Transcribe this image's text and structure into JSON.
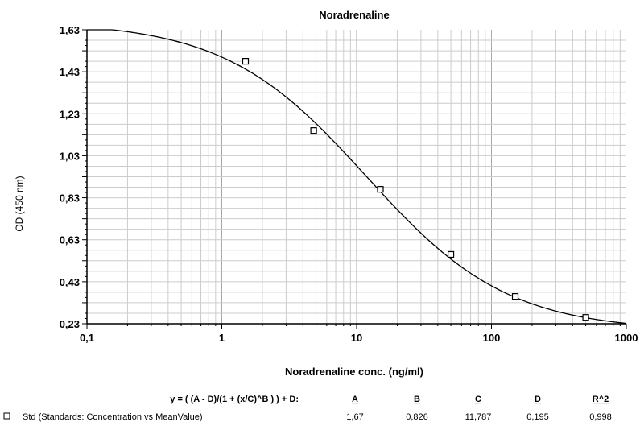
{
  "chart_data": {
    "type": "scatter",
    "title": "Noradrenaline",
    "xlabel": "Noradrenaline conc. (ng/ml)",
    "ylabel": "OD (450 nm)",
    "x_scale": "log",
    "xlim": [
      0.1,
      1000
    ],
    "ylim": [
      0.23,
      1.63
    ],
    "x_ticks": [
      "0,1",
      "1",
      "10",
      "100",
      "1000"
    ],
    "y_ticks": [
      "1,63",
      "1,43",
      "1,23",
      "1,03",
      "0,83",
      "0,63",
      "0,43",
      "0,23"
    ],
    "grid": true,
    "series": [
      {
        "name": "Std (Standards: Concentration vs MeanValue)",
        "marker": "square",
        "x": [
          1.5,
          4.8,
          15,
          50,
          150,
          500
        ],
        "y": [
          1.48,
          1.15,
          0.87,
          0.56,
          0.36,
          0.26
        ]
      }
    ],
    "fit": {
      "equation": "y = ( (A - D)/(1 + (x/C)^B ) ) + D:",
      "params": {
        "A": 1.67,
        "B": 0.826,
        "C": 11.787,
        "D": 0.195
      }
    }
  },
  "fit_table": {
    "equation": "y = ( (A - D)/(1 + (x/C)^B ) ) + D:",
    "headers": [
      "A",
      "B",
      "C",
      "D",
      "R^2"
    ],
    "row_label": "Std (Standards: Concentration vs MeanValue)",
    "values": [
      "1,67",
      "0,826",
      "11,787",
      "0,195",
      "0,998"
    ]
  }
}
